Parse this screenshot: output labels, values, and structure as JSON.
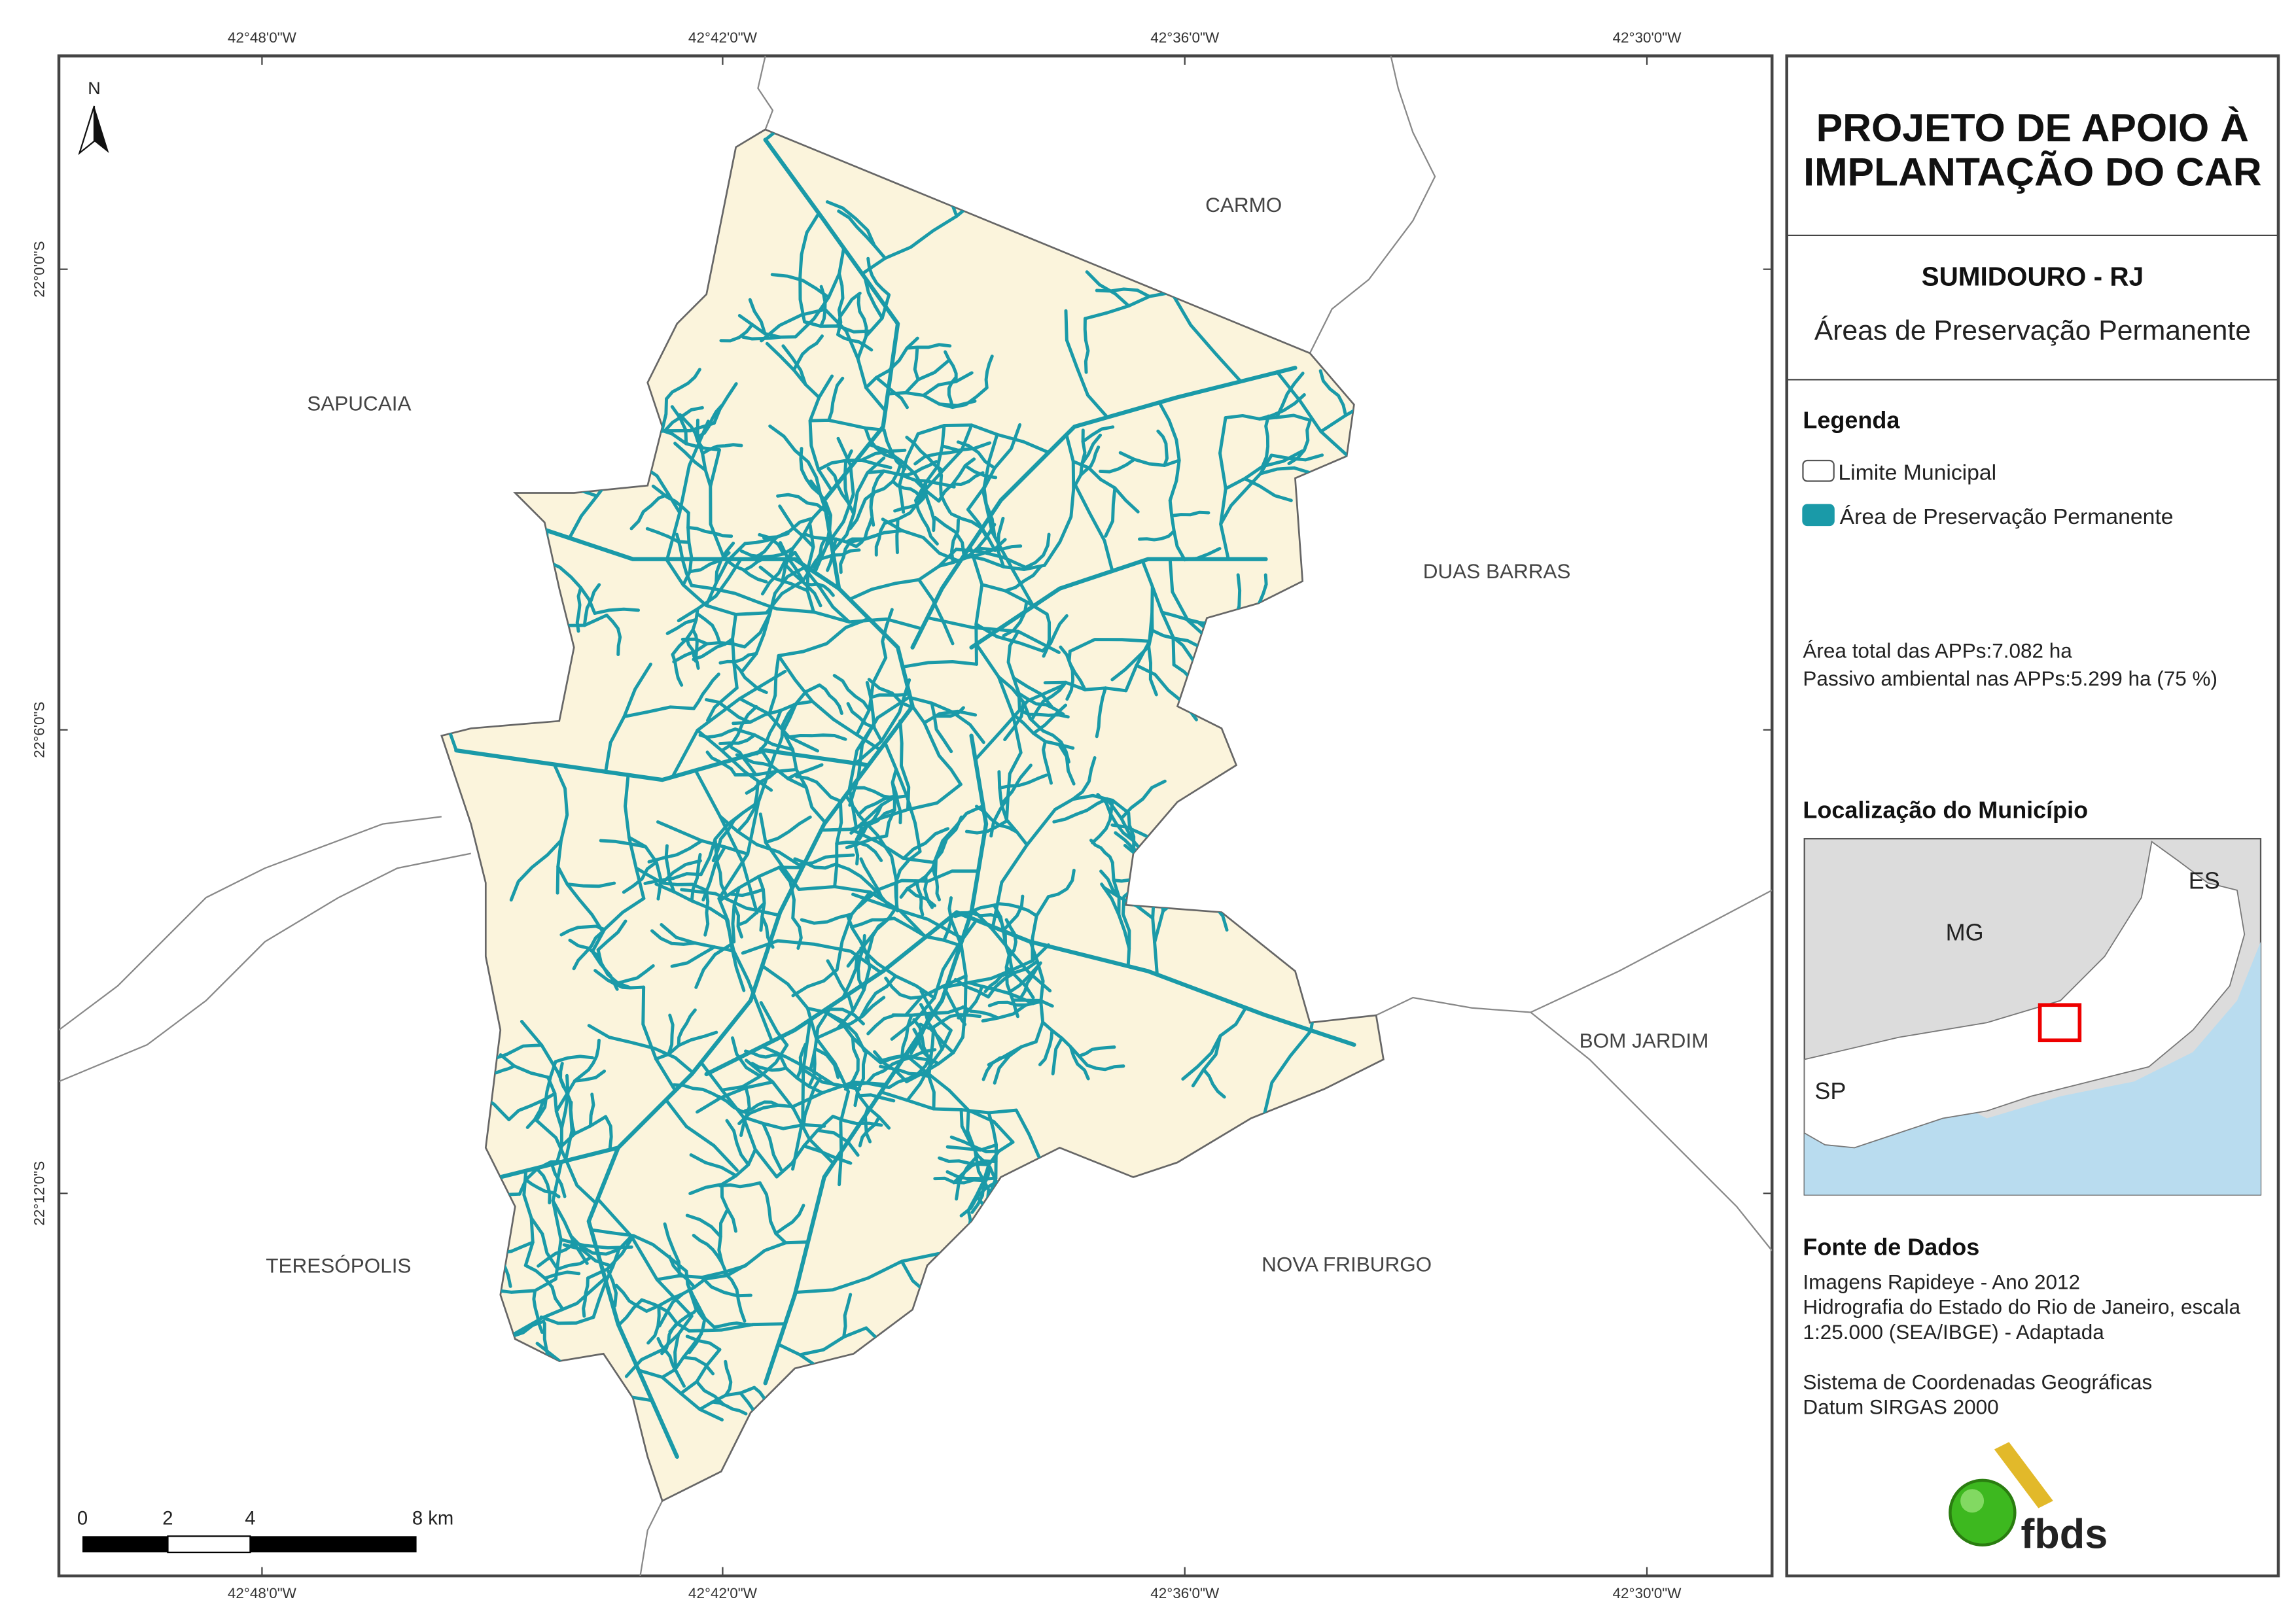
{
  "map": {
    "coords_x": [
      "42°48'0\"W",
      "42°42'0\"W",
      "42°36'0\"W",
      "42°30'0\"W"
    ],
    "coords_y": [
      "22°0'0\"S",
      "22°6'0\"S",
      "22°12'0\"S"
    ],
    "north": "N",
    "neighbors": [
      "CARMO",
      "SAPUCAIA",
      "DUAS BARRAS",
      "BOM JARDIM",
      "TERESÓPOLIS",
      "NOVA FRIBURGO"
    ],
    "scale_labels": [
      "0",
      "2",
      "4",
      "8 km"
    ]
  },
  "panel": {
    "title": [
      "PROJETO DE APOIO À",
      "IMPLANTAÇÃO DO CAR"
    ],
    "municipality": "SUMIDOURO - RJ",
    "theme": "Áreas de Preservação Permanente",
    "legend_title": "Legenda",
    "legend_items": [
      "Limite Municipal",
      "Área de Preservação Permanente"
    ],
    "stats": [
      "Área total das APPs:7.082  ha",
      "Passivo ambiental nas APPs:5.299  ha (75 %)"
    ],
    "location_title": "Localização do Município",
    "location_labels": [
      "ES",
      "MG",
      "SP"
    ],
    "sources_title": "Fonte de Dados",
    "sources": [
      "Imagens Rapideye - Ano 2012",
      "Hidrografia do Estado do Rio de Janeiro, escala",
      "1:25.000 (SEA/IBGE) - Adaptada",
      "",
      "Sistema de Coordenadas Geográficas",
      "Datum SIRGAS 2000"
    ],
    "logo": "fbds"
  }
}
